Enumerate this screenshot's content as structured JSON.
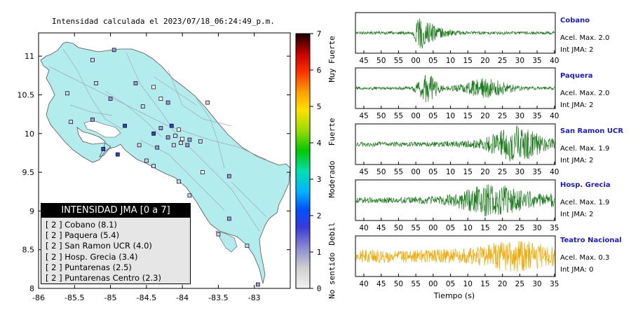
{
  "map": {
    "title": "Intensidad calculada el 2023/07/18_06:24:49_p.m.",
    "x_ticks": [
      "-86",
      "-85.5",
      "-85",
      "-84.5",
      "-84",
      "-83.5",
      "-83"
    ],
    "y_ticks": [
      "8",
      "8.5",
      "9",
      "9.5",
      "10",
      "10.5",
      "11"
    ],
    "land_color": "#b3eced",
    "legend_box": {
      "title": "INTENSIDAD JMA [0 a 7]",
      "items": [
        "[ 2 ]  Cobano (8.1)",
        "[ 2 ]  Paquera (5.4)",
        "[ 2 ]  San Ramon UCR (4.0)",
        "[ 2 ]  Hosp. Grecia (3.4)",
        "[ 2 ]  Puntarenas (2.5)",
        "[ 2 ]  Puntarenas Centro (2.3)"
      ]
    }
  },
  "colorbar": {
    "ticks": [
      "0",
      "1",
      "2",
      "3",
      "4",
      "5",
      "6",
      "7"
    ],
    "labels": [
      "No sentido",
      "Debil",
      "Moderado",
      "Fuerte",
      "Muy Fuerte"
    ]
  },
  "traces": [
    {
      "station": "Cobano",
      "acel": "Acel. Max. 2.0",
      "int": "Int JMA: 2",
      "color": "#1a7a1a",
      "ticks": [
        "45",
        "50",
        "55",
        "00",
        "05",
        "10",
        "15",
        "20",
        "25",
        "30",
        "35",
        "40"
      ]
    },
    {
      "station": "Paquera",
      "acel": "Acel. Max. 2.0",
      "int": "Int JMA: 2",
      "color": "#1a7a1a",
      "ticks": [
        "45",
        "50",
        "55",
        "00",
        "05",
        "10",
        "15",
        "20",
        "25",
        "30",
        "35",
        "40"
      ]
    },
    {
      "station": "San Ramon UCR",
      "acel": "Acel. Max. 1.9",
      "int": "Int JMA: 2",
      "color": "#1a7a1a",
      "ticks": [
        "45",
        "50",
        "55",
        "00",
        "05",
        "10",
        "15",
        "20",
        "25",
        "30",
        "35",
        "40"
      ]
    },
    {
      "station": "Hosp. Grecia",
      "acel": "Acel. Max. 1.9",
      "int": "Int JMA: 2",
      "color": "#1a7a1a",
      "ticks": [
        "40",
        "45",
        "50",
        "55",
        "00",
        "05",
        "10",
        "15",
        "20",
        "25",
        "30",
        "35"
      ]
    },
    {
      "station": "Teatro Nacional",
      "acel": "Acel. Max. 0.3",
      "int": "Int JMA: 0",
      "color": "#f0a800",
      "ticks": [
        "40",
        "45",
        "50",
        "55",
        "00",
        "05",
        "10",
        "15",
        "20",
        "25",
        "30",
        "35"
      ]
    }
  ],
  "xlabel": "Tiempo (s)",
  "chart_data": [
    {
      "type": "scatter",
      "title": "Intensidad calculada el 2023/07/18_06:24:49_p.m.",
      "xlim": [
        -86,
        -82.5
      ],
      "ylim": [
        8,
        11.3
      ],
      "stations_lonlat": [
        [
          -84.95,
          11.08
        ],
        [
          -85.25,
          10.95
        ],
        [
          -85.2,
          10.65
        ],
        [
          -84.65,
          10.65
        ],
        [
          -84.4,
          10.6
        ],
        [
          -85.6,
          10.52
        ],
        [
          -85.0,
          10.45
        ],
        [
          -84.55,
          10.35
        ],
        [
          -84.3,
          10.45
        ],
        [
          -84.2,
          10.4
        ],
        [
          -83.65,
          10.4
        ],
        [
          -85.55,
          10.15
        ],
        [
          -85.25,
          10.18
        ],
        [
          -84.8,
          10.1
        ],
        [
          -84.15,
          10.1
        ],
        [
          -84.3,
          10.07
        ],
        [
          -84.05,
          10.05
        ],
        [
          -84.4,
          10.0
        ],
        [
          -84.2,
          9.95
        ],
        [
          -84.1,
          9.97
        ],
        [
          -84.0,
          9.93
        ],
        [
          -83.9,
          9.92
        ],
        [
          -83.75,
          9.9
        ],
        [
          -84.6,
          9.85
        ],
        [
          -84.35,
          9.82
        ],
        [
          -84.12,
          9.85
        ],
        [
          -84.02,
          9.88
        ],
        [
          -83.93,
          9.85
        ],
        [
          -85.1,
          9.8
        ],
        [
          -84.5,
          9.65
        ],
        [
          -84.9,
          9.73
        ],
        [
          -84.4,
          9.58
        ],
        [
          -83.72,
          9.5
        ],
        [
          -83.35,
          9.45
        ],
        [
          -84.05,
          9.38
        ],
        [
          -83.9,
          9.2
        ],
        [
          -83.35,
          8.9
        ],
        [
          -83.5,
          8.7
        ],
        [
          -83.1,
          8.55
        ],
        [
          -82.95,
          8.05
        ]
      ]
    },
    {
      "type": "line",
      "name": "Cobano",
      "xlabel": "Tiempo (s)",
      "acel_max": 2.0,
      "int_jma": 2,
      "x_ticks": [
        "45",
        "50",
        "55",
        "00",
        "05",
        "10",
        "15",
        "20",
        "25",
        "30",
        "35",
        "40"
      ]
    },
    {
      "type": "line",
      "name": "Paquera",
      "xlabel": "Tiempo (s)",
      "acel_max": 2.0,
      "int_jma": 2,
      "x_ticks": [
        "45",
        "50",
        "55",
        "00",
        "05",
        "10",
        "15",
        "20",
        "25",
        "30",
        "35",
        "40"
      ]
    },
    {
      "type": "line",
      "name": "San Ramon UCR",
      "xlabel": "Tiempo (s)",
      "acel_max": 1.9,
      "int_jma": 2,
      "x_ticks": [
        "45",
        "50",
        "55",
        "00",
        "05",
        "10",
        "15",
        "20",
        "25",
        "30",
        "35",
        "40"
      ]
    },
    {
      "type": "line",
      "name": "Hosp. Grecia",
      "xlabel": "Tiempo (s)",
      "acel_max": 1.9,
      "int_jma": 2,
      "x_ticks": [
        "40",
        "45",
        "50",
        "55",
        "00",
        "05",
        "10",
        "15",
        "20",
        "25",
        "30",
        "35"
      ]
    },
    {
      "type": "line",
      "name": "Teatro Nacional",
      "xlabel": "Tiempo (s)",
      "acel_max": 0.3,
      "int_jma": 0,
      "x_ticks": [
        "40",
        "45",
        "50",
        "55",
        "00",
        "05",
        "10",
        "15",
        "20",
        "25",
        "30",
        "35"
      ]
    }
  ]
}
